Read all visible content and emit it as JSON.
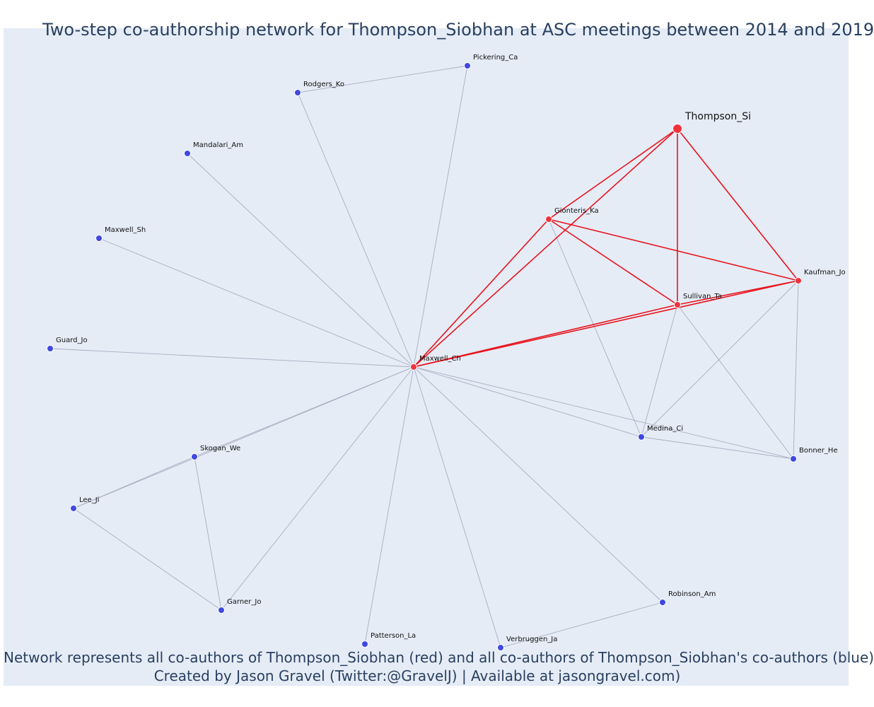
{
  "title": "Two-step co-authorship network for Thompson_Siobhan at ASC meetings between 2014 and 2019",
  "caption": {
    "line1": "Network represents all co-authors of Thompson_Siobhan (red) and all co-authors of Thompson_Siobhan's co-authors (blue)",
    "line2": "Created by Jason Gravel (Twitter:@GravelJ) | Available at jasongravel.com)"
  },
  "colors": {
    "background": "#e5ecf6",
    "focal": "#f0323c",
    "coauthor": "#f0323c",
    "second_degree": "#4048e0",
    "red_edge": "#e8141e",
    "grey_edge": "#a8aec0",
    "title_text": "#2a3f5f"
  },
  "nodes": [
    {
      "id": "Thompson_Si",
      "label": "Thompson_Si",
      "group": "focal"
    },
    {
      "id": "Gionteris_Ka",
      "label": "Gionteris_Ka",
      "group": "coauthor"
    },
    {
      "id": "Kaufman_Jo",
      "label": "Kaufman_Jo",
      "group": "coauthor"
    },
    {
      "id": "Sullivan_Ta",
      "label": "Sullivan_Ta",
      "group": "coauthor"
    },
    {
      "id": "Maxwell_Ch",
      "label": "Maxwell_Ch",
      "group": "coauthor"
    },
    {
      "id": "Pickering_Ca",
      "label": "Pickering_Ca",
      "group": "second"
    },
    {
      "id": "Rodgers_Ko",
      "label": "Rodgers_Ko",
      "group": "second"
    },
    {
      "id": "Mandalari_Am",
      "label": "Mandalari_Am",
      "group": "second"
    },
    {
      "id": "Maxwell_Sh",
      "label": "Maxwell_Sh",
      "group": "second"
    },
    {
      "id": "Guard_Jo",
      "label": "Guard_Jo",
      "group": "second"
    },
    {
      "id": "Skogan_We",
      "label": "Skogan_We",
      "group": "second"
    },
    {
      "id": "Lee_Ji",
      "label": "Lee_Ji",
      "group": "second"
    },
    {
      "id": "Garner_Jo",
      "label": "Garner_Jo",
      "group": "second"
    },
    {
      "id": "Patterson_La",
      "label": "Patterson_La",
      "group": "second"
    },
    {
      "id": "Verbruggen_Ja",
      "label": "Verbruggen_Ja",
      "group": "second"
    },
    {
      "id": "Robinson_Am",
      "label": "Robinson_Am",
      "group": "second"
    },
    {
      "id": "Medina_Ci",
      "label": "Medina_Ci",
      "group": "second"
    },
    {
      "id": "Bonner_He",
      "label": "Bonner_He",
      "group": "second"
    }
  ],
  "edges": [
    [
      "Thompson_Si",
      "Gionteris_Ka",
      "red"
    ],
    [
      "Thompson_Si",
      "Maxwell_Ch",
      "red"
    ],
    [
      "Thompson_Si",
      "Sullivan_Ta",
      "red"
    ],
    [
      "Thompson_Si",
      "Kaufman_Jo",
      "red"
    ],
    [
      "Gionteris_Ka",
      "Maxwell_Ch",
      "red"
    ],
    [
      "Gionteris_Ka",
      "Sullivan_Ta",
      "red"
    ],
    [
      "Gionteris_Ka",
      "Kaufman_Jo",
      "red"
    ],
    [
      "Maxwell_Ch",
      "Sullivan_Ta",
      "red"
    ],
    [
      "Maxwell_Ch",
      "Kaufman_Jo",
      "red"
    ],
    [
      "Sullivan_Ta",
      "Kaufman_Jo",
      "red"
    ],
    [
      "Rodgers_Ko",
      "Pickering_Ca",
      "grey"
    ],
    [
      "Rodgers_Ko",
      "Maxwell_Ch",
      "grey"
    ],
    [
      "Pickering_Ca",
      "Maxwell_Ch",
      "grey"
    ],
    [
      "Mandalari_Am",
      "Maxwell_Ch",
      "grey"
    ],
    [
      "Maxwell_Sh",
      "Maxwell_Ch",
      "grey"
    ],
    [
      "Guard_Jo",
      "Maxwell_Ch",
      "grey"
    ],
    [
      "Skogan_We",
      "Maxwell_Ch",
      "grey"
    ],
    [
      "Lee_Ji",
      "Maxwell_Ch",
      "grey"
    ],
    [
      "Garner_Jo",
      "Maxwell_Ch",
      "grey"
    ],
    [
      "Patterson_La",
      "Maxwell_Ch",
      "grey"
    ],
    [
      "Verbruggen_Ja",
      "Maxwell_Ch",
      "grey"
    ],
    [
      "Robinson_Am",
      "Maxwell_Ch",
      "grey"
    ],
    [
      "Medina_Ci",
      "Maxwell_Ch",
      "grey"
    ],
    [
      "Bonner_He",
      "Maxwell_Ch",
      "grey"
    ],
    [
      "Skogan_We",
      "Lee_Ji",
      "grey"
    ],
    [
      "Skogan_We",
      "Garner_Jo",
      "grey"
    ],
    [
      "Lee_Ji",
      "Garner_Jo",
      "grey"
    ],
    [
      "Verbruggen_Ja",
      "Robinson_Am",
      "grey"
    ],
    [
      "Gionteris_Ka",
      "Medina_Ci",
      "grey"
    ],
    [
      "Sullivan_Ta",
      "Medina_Ci",
      "grey"
    ],
    [
      "Kaufman_Jo",
      "Medina_Ci",
      "grey"
    ],
    [
      "Sullivan_Ta",
      "Bonner_He",
      "grey"
    ],
    [
      "Kaufman_Jo",
      "Bonner_He",
      "grey"
    ],
    [
      "Medina_Ci",
      "Bonner_He",
      "grey"
    ]
  ]
}
